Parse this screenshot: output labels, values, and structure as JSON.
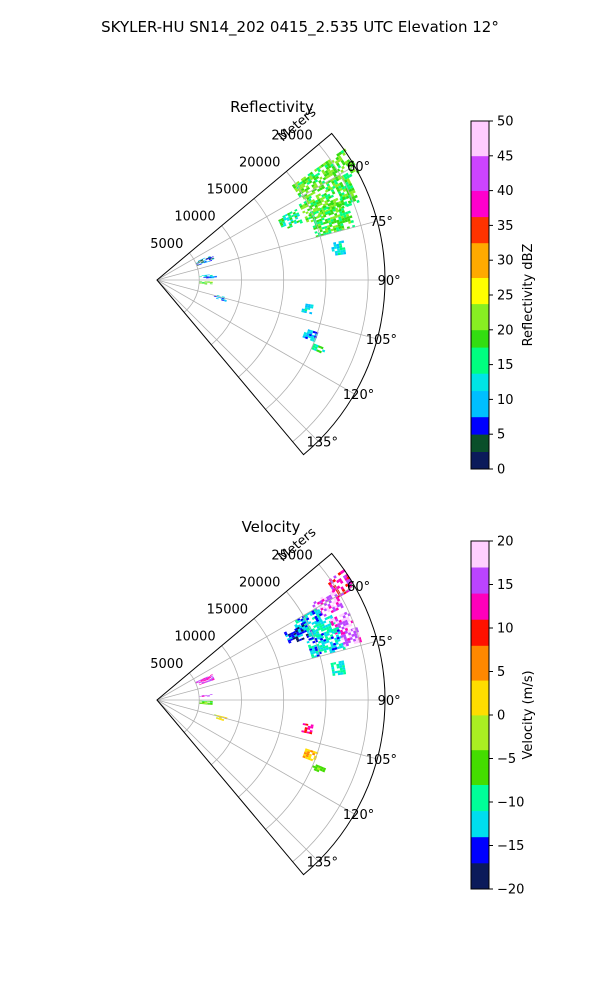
{
  "figure": {
    "title": "SKYLER-HU  SN14_202  0415_2.535 UTC Elevation 12°"
  },
  "chart_data": [
    {
      "type": "polar-sector",
      "id": "reflectivity",
      "title": "Reflectivity",
      "range_label": "Meters",
      "theta_min_deg": 50,
      "theta_max_deg": 140,
      "r_max": 27000,
      "r_ticks": [
        5000,
        10000,
        15000,
        20000,
        25000
      ],
      "r_tick_labels": [
        "5000",
        "10000",
        "15000",
        "20000",
        "25000"
      ],
      "theta_grid_deg": [
        60,
        75,
        90,
        105,
        120,
        135
      ],
      "theta_tick_labels": [
        "60°",
        "75°",
        "90°",
        "105°",
        "120°",
        "135°"
      ],
      "grid": true,
      "colorbar": {
        "label": "Reflectivity dBZ",
        "min": 0,
        "max": 50,
        "ticks": [
          0,
          5,
          10,
          15,
          20,
          25,
          30,
          35,
          40,
          45,
          50
        ],
        "tick_labels": [
          "0",
          "5",
          "10",
          "15",
          "20",
          "25",
          "30",
          "35",
          "40",
          "45",
          "50"
        ]
      },
      "echo_regions": [
        {
          "theta": [
            55,
            62
          ],
          "r": [
            19500,
            27000
          ],
          "value": 19
        },
        {
          "theta": [
            62,
            69
          ],
          "r": [
            19000,
            25500
          ],
          "value": 19
        },
        {
          "theta": [
            66,
            75
          ],
          "r": [
            19500,
            24000
          ],
          "value": 18
        },
        {
          "theta": [
            63,
            68
          ],
          "r": [
            16000,
            18500
          ],
          "value": 15
        },
        {
          "theta": [
            78,
            82
          ],
          "r": [
            21000,
            22500
          ],
          "value": 13
        },
        {
          "theta": [
            65,
            70
          ],
          "r": [
            5000,
            7000
          ],
          "value": 6
        },
        {
          "theta": [
            99,
            102
          ],
          "r": [
            17500,
            18500
          ],
          "value": 12
        },
        {
          "theta": [
            108,
            111
          ],
          "r": [
            18500,
            20000
          ],
          "value": 11
        },
        {
          "theta": [
            112,
            114
          ],
          "r": [
            20000,
            21500
          ],
          "value": 15
        },
        {
          "theta": [
            84,
            86
          ],
          "r": [
            5000,
            6500
          ],
          "value": 12
        },
        {
          "theta": [
            86,
            88
          ],
          "r": [
            5500,
            7000
          ],
          "value": 7
        },
        {
          "theta": [
            91,
            93
          ],
          "r": [
            5000,
            6500
          ],
          "value": 21
        },
        {
          "theta": [
            93,
            95
          ],
          "r": [
            5000,
            6500
          ],
          "value": 20
        },
        {
          "theta": [
            104,
            107
          ],
          "r": [
            7000,
            8500
          ],
          "value": 10
        }
      ]
    },
    {
      "type": "polar-sector",
      "id": "velocity",
      "title": "Velocity",
      "range_label": "Meters",
      "theta_min_deg": 50,
      "theta_max_deg": 140,
      "r_max": 27000,
      "r_ticks": [
        5000,
        10000,
        15000,
        20000,
        25000
      ],
      "r_tick_labels": [
        "5000",
        "10000",
        "15000",
        "20000",
        "25000"
      ],
      "theta_grid_deg": [
        60,
        75,
        90,
        105,
        120,
        135
      ],
      "theta_tick_labels": [
        "60°",
        "75°",
        "90°",
        "105°",
        "120°",
        "135°"
      ],
      "grid": true,
      "colorbar": {
        "label": "Velocity (m/s)",
        "min": -20,
        "max": 20,
        "ticks": [
          -20,
          -15,
          -10,
          -5,
          0,
          5,
          10,
          15,
          20
        ],
        "tick_labels": [
          "−20",
          "−15",
          "−10",
          "−5",
          "0",
          "5",
          "10",
          "15",
          "20"
        ]
      },
      "echo_regions": [
        {
          "theta": [
            55,
            60
          ],
          "r": [
            24500,
            27000
          ],
          "value": 12
        },
        {
          "theta": [
            58,
            63
          ],
          "r": [
            21500,
            24500
          ],
          "value": 16
        },
        {
          "theta": [
            60,
            64
          ],
          "r": [
            18500,
            22000
          ],
          "value": -13
        },
        {
          "theta": [
            62,
            67
          ],
          "r": [
            17000,
            20000
          ],
          "value": -15
        },
        {
          "theta": [
            64,
            69
          ],
          "r": [
            19500,
            23000
          ],
          "value": -11
        },
        {
          "theta": [
            65,
            70
          ],
          "r": [
            22500,
            25000
          ],
          "value": 16
        },
        {
          "theta": [
            68,
            75
          ],
          "r": [
            19000,
            23000
          ],
          "value": -12
        },
        {
          "theta": [
            70,
            74
          ],
          "r": [
            23000,
            25000
          ],
          "value": 16
        },
        {
          "theta": [
            78,
            82
          ],
          "r": [
            21000,
            22500
          ],
          "value": -11
        },
        {
          "theta": [
            65,
            70
          ],
          "r": [
            5000,
            7000
          ],
          "value": 14
        },
        {
          "theta": [
            99,
            102
          ],
          "r": [
            17500,
            18500
          ],
          "value": 11
        },
        {
          "theta": [
            108,
            111
          ],
          "r": [
            18500,
            20000
          ],
          "value": 3
        },
        {
          "theta": [
            112,
            114
          ],
          "r": [
            20000,
            21500
          ],
          "value": -5
        },
        {
          "theta": [
            84,
            86
          ],
          "r": [
            5000,
            6500
          ],
          "value": 16
        },
        {
          "theta": [
            91,
            93
          ],
          "r": [
            5000,
            6500
          ],
          "value": -6
        },
        {
          "theta": [
            93,
            95
          ],
          "r": [
            5000,
            6500
          ],
          "value": -5
        },
        {
          "theta": [
            104,
            107
          ],
          "r": [
            7000,
            8500
          ],
          "value": 2
        }
      ]
    }
  ]
}
